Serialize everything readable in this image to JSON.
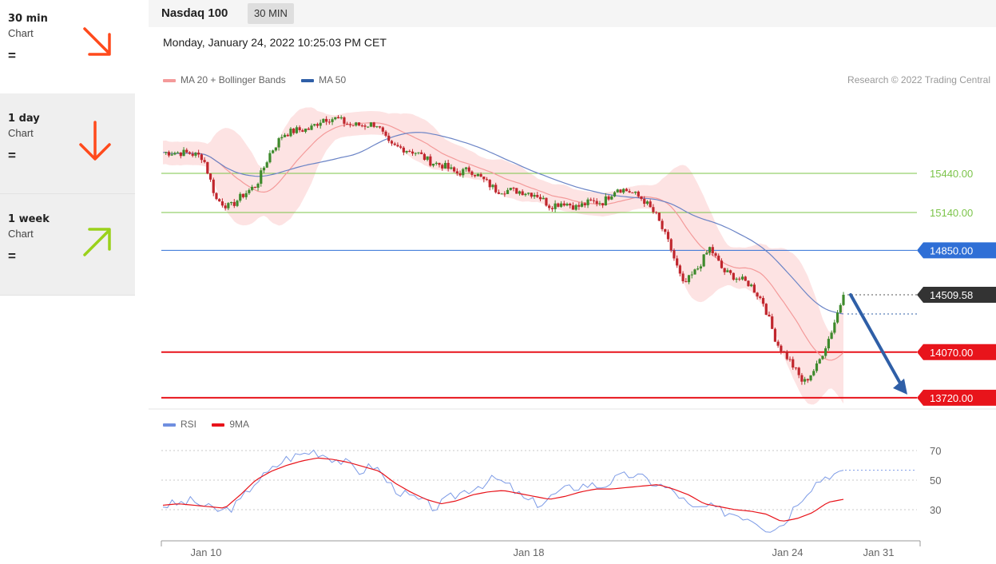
{
  "sidebar": {
    "items": [
      {
        "label": "30 min",
        "sub": "Chart",
        "indicator": "=",
        "direction": "down-right",
        "color": "#ff4a1c",
        "state": "active"
      },
      {
        "label": "1 day",
        "sub": "Chart",
        "indicator": "=",
        "direction": "down",
        "color": "#ff4a1c",
        "state": "inactive"
      },
      {
        "label": "1 week",
        "sub": "Chart",
        "indicator": "=",
        "direction": "up-right",
        "color": "#9ad11b",
        "state": "inactive"
      }
    ]
  },
  "header": {
    "instrument": "Nasdaq 100",
    "interval": "30 MIN",
    "timestamp": "Monday, January 24, 2022 10:25:03 PM CET"
  },
  "legend": {
    "items": [
      {
        "label": "MA 20 + Bollinger Bands",
        "color": "#f49a9a"
      },
      {
        "label": "MA 50",
        "color": "#2f5fa7"
      }
    ]
  },
  "copyright": "Research © 2022 Trading Central",
  "rsi_legend": {
    "items": [
      {
        "label": "RSI",
        "color": "#6f8fe0"
      },
      {
        "label": "9MA",
        "color": "#e8141b"
      }
    ]
  },
  "colors": {
    "up": "#3e8a2c",
    "down": "#c0262d",
    "resistance": "#7cc44a",
    "pivot": "#2f6fd6",
    "support": "#e8141b",
    "last": "#333333",
    "ma50": "#6b84c6",
    "ma20": "#f49a9a",
    "band": "#fde3e3",
    "arrow": "#2f5fa7"
  },
  "chart_data": [
    {
      "type": "candlestick",
      "title": "Nasdaq 100",
      "ylim": [
        13700,
        16000
      ],
      "x_ticks": [
        "Jan 10",
        "Jan 18",
        "Jan 24",
        "Jan 31"
      ],
      "levels": [
        {
          "value": 15440.0,
          "label": "15440.00",
          "kind": "resistance"
        },
        {
          "value": 15140.0,
          "label": "15140.00",
          "kind": "resistance"
        },
        {
          "value": 14850.0,
          "label": "14850.00",
          "kind": "pivot"
        },
        {
          "value": 14509.58,
          "label": "14509.58",
          "kind": "last"
        },
        {
          "value": 14070.0,
          "label": "14070.00",
          "kind": "support"
        },
        {
          "value": 13720.0,
          "label": "13720.00",
          "kind": "support"
        }
      ],
      "key_points": [
        15600,
        15600,
        15595,
        15565,
        15240,
        15180,
        15275,
        15350,
        15590,
        15740,
        15770,
        15780,
        15860,
        15860,
        15810,
        15810,
        15820,
        15650,
        15630,
        15600,
        15530,
        15500,
        15440,
        15470,
        15390,
        15310,
        15310,
        15300,
        15280,
        15190,
        15220,
        15180,
        15220,
        15220,
        15330,
        15300,
        15240,
        15110,
        14880,
        14580,
        14700,
        14870,
        14690,
        14640,
        14590,
        14450,
        14140,
        14000,
        13830,
        13960,
        14200,
        14510
      ],
      "forecast": {
        "from": 14509.58,
        "to": 13720.0,
        "direction": "down"
      }
    },
    {
      "type": "line",
      "series": [
        {
          "name": "RSI"
        },
        {
          "name": "9MA"
        }
      ],
      "y_ticks": [
        70,
        50,
        30
      ],
      "rsi_key": [
        33,
        34,
        36,
        31,
        29,
        34,
        48,
        55,
        64,
        67,
        70,
        66,
        62,
        56,
        60,
        47,
        40,
        36,
        31,
        38,
        43,
        47,
        51,
        45,
        36,
        34,
        41,
        45,
        47,
        46,
        51,
        54,
        50,
        46,
        41,
        30,
        32,
        29,
        27,
        24,
        17,
        20,
        36,
        47,
        54,
        54
      ],
      "ma9_key": [
        33,
        34,
        33,
        32,
        31,
        40,
        50,
        56,
        60,
        63,
        65,
        64,
        62,
        59,
        56,
        48,
        42,
        37,
        34,
        36,
        40,
        42,
        43,
        41,
        39,
        37,
        39,
        42,
        44,
        44,
        45,
        46,
        47,
        44,
        40,
        34,
        32,
        30,
        29,
        27,
        22,
        24,
        28,
        35,
        37
      ]
    }
  ]
}
